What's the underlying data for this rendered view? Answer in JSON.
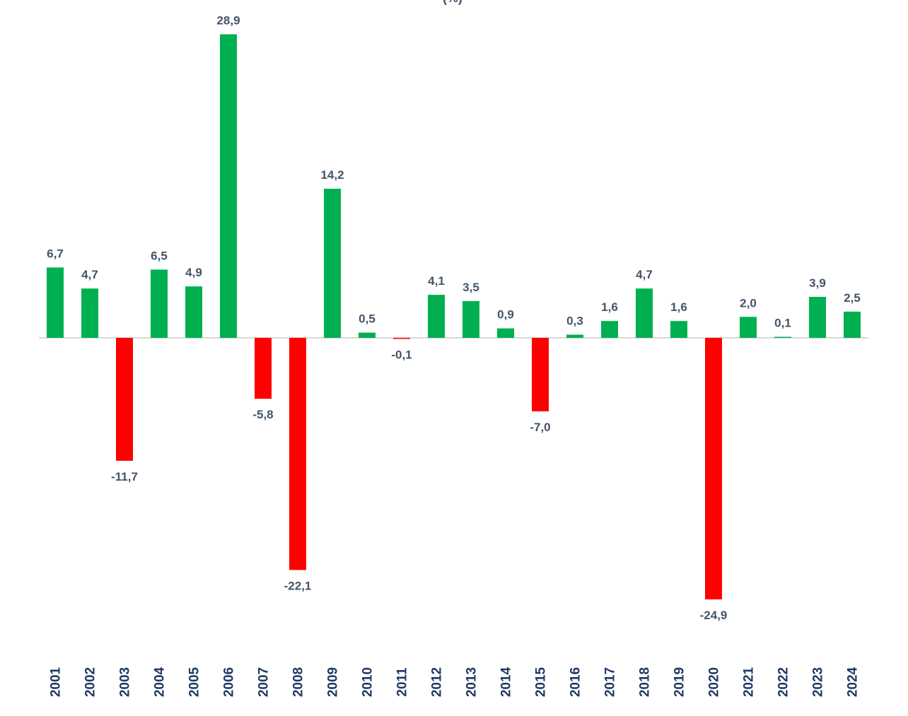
{
  "chart_data": {
    "type": "bar",
    "title": "(%)",
    "xlabel": "",
    "ylabel": "",
    "ylim": [
      -26,
      30
    ],
    "grid": false,
    "legend": "none",
    "decimal_separator": ",",
    "colors": {
      "positive": "#00B050",
      "negative": "#FF0000",
      "zero_line": "#D9D9D9",
      "value_label": "#44546A",
      "category_label": "#1F3864"
    },
    "categories": [
      "2001",
      "2002",
      "2003",
      "2004",
      "2005",
      "2006",
      "2007",
      "2008",
      "2009",
      "2010",
      "2011",
      "2012",
      "2013",
      "2014",
      "2015",
      "2016",
      "2017",
      "2018",
      "2019",
      "2020",
      "2021",
      "2022",
      "2023",
      "2024"
    ],
    "values": [
      6.7,
      4.7,
      -11.7,
      6.5,
      4.9,
      28.9,
      -5.8,
      -22.1,
      14.2,
      0.5,
      -0.1,
      4.1,
      3.5,
      0.9,
      -7.0,
      0.3,
      1.6,
      4.7,
      1.6,
      -24.9,
      2.0,
      0.1,
      3.9,
      2.5
    ]
  }
}
